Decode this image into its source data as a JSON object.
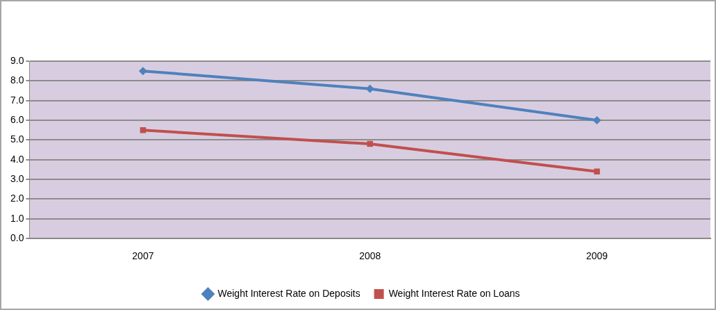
{
  "chart_data": {
    "type": "line",
    "categories": [
      "2007",
      "2008",
      "2009"
    ],
    "series": [
      {
        "name": "Weight Interest Rate on Deposits",
        "color": "#4f81bd",
        "values": [
          8.5,
          7.6,
          6.0
        ],
        "marker": "diamond"
      },
      {
        "name": "Weight Interest Rate on Loans",
        "color": "#c0504d",
        "values": [
          5.5,
          4.8,
          3.4
        ],
        "marker": "square"
      }
    ],
    "ylim": [
      0,
      9
    ],
    "yticks": [
      {
        "value": 0,
        "label": "0.0"
      },
      {
        "value": 1,
        "label": "1.0"
      },
      {
        "value": 2,
        "label": "2.0"
      },
      {
        "value": 3,
        "label": "3.0"
      },
      {
        "value": 4,
        "label": "4.0"
      },
      {
        "value": 5,
        "label": "5.0"
      },
      {
        "value": 6,
        "label": "6.0"
      },
      {
        "value": 7,
        "label": "7.0"
      },
      {
        "value": 8,
        "label": "8.0"
      },
      {
        "value": 9,
        "label": "9.0"
      }
    ],
    "grid": "y",
    "legend": "bottom",
    "line_style": "solid"
  }
}
